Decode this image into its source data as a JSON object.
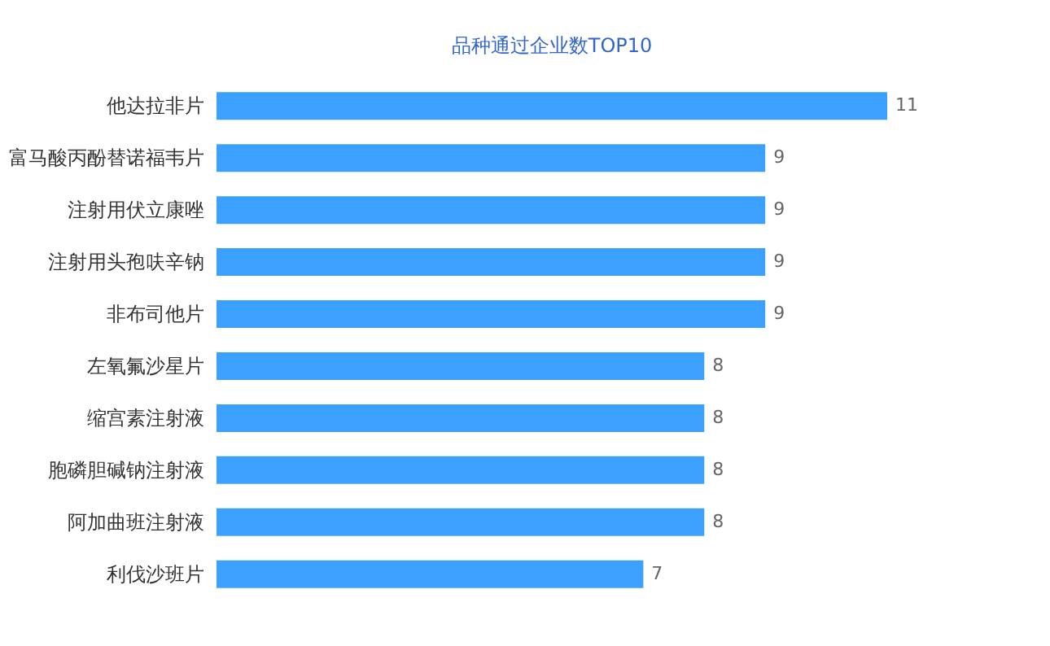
{
  "chart_data": {
    "type": "bar",
    "orientation": "horizontal",
    "title": "品种通过企业数TOP10",
    "categories": [
      "他达拉非片",
      "富马酸丙酚替诺福韦片",
      "注射用伏立康唑",
      "注射用头孢呋辛钠",
      "非布司他片",
      "左氧氟沙星片",
      "缩宫素注射液",
      "胞磷胆碱钠注射液",
      "阿加曲班注射液",
      "利伐沙班片"
    ],
    "values": [
      11,
      9,
      9,
      9,
      9,
      8,
      8,
      8,
      8,
      7
    ],
    "color": "#3ca0ff",
    "data_labels": true
  }
}
